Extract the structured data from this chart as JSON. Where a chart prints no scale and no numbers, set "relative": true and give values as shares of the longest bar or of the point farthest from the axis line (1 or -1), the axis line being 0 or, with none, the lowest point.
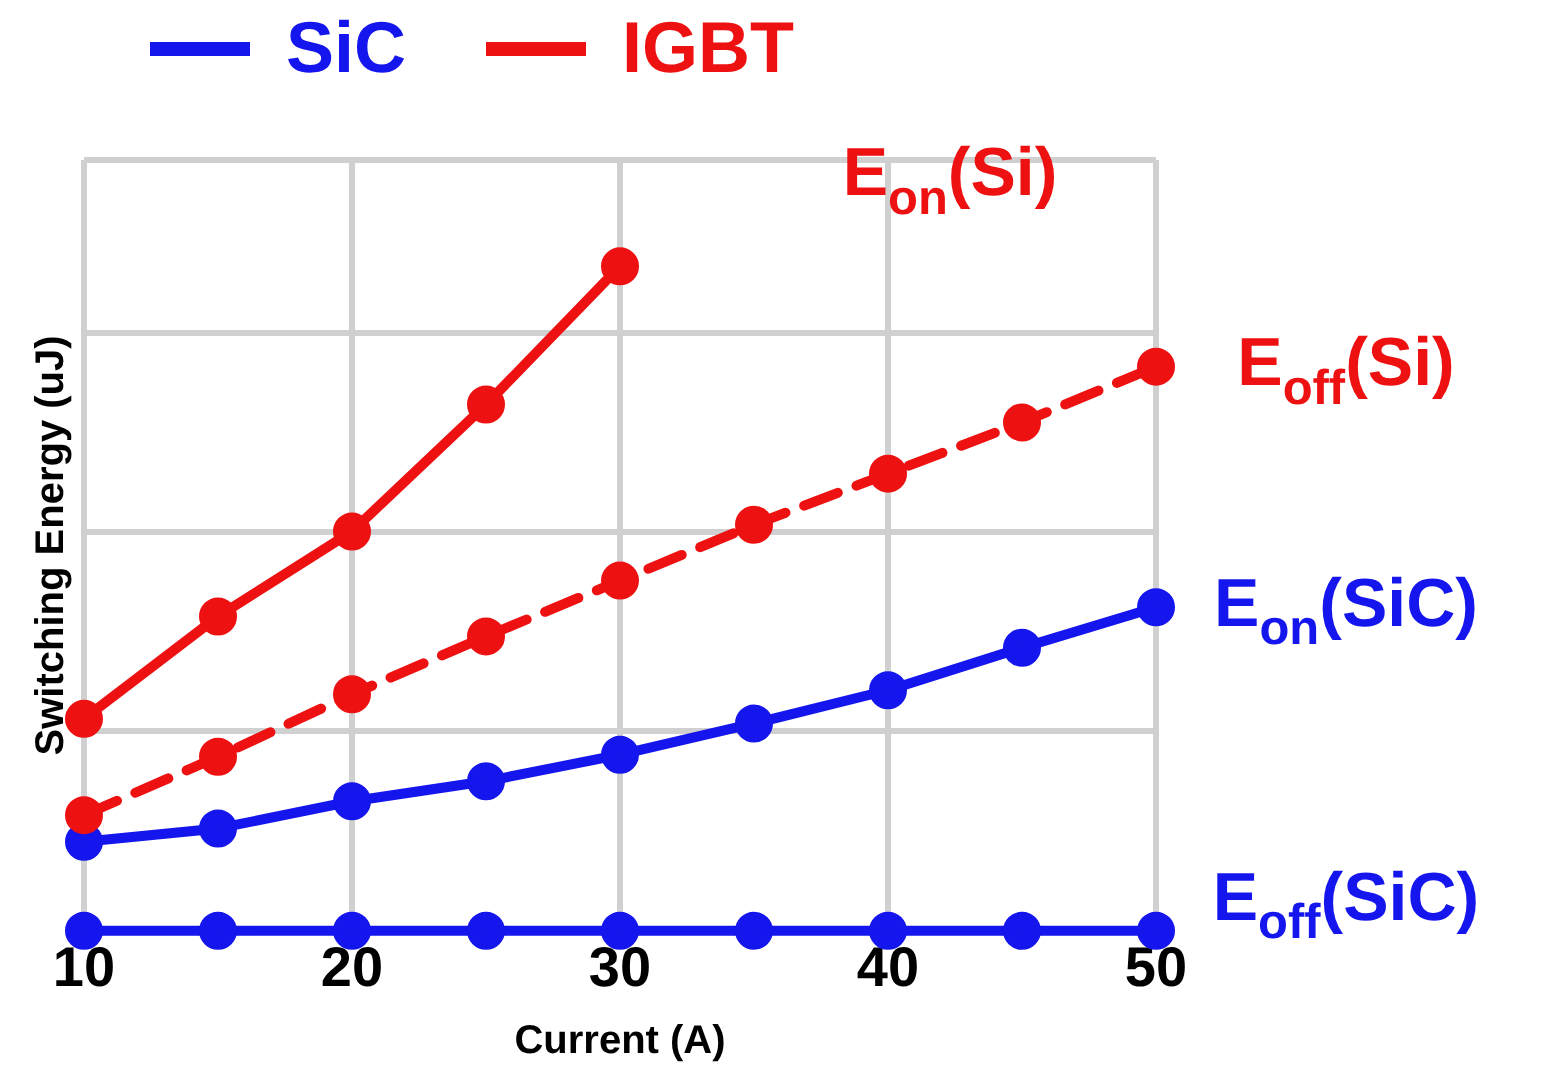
{
  "chart_data": {
    "type": "line",
    "relative": true,
    "xlabel": "Current (A)",
    "ylabel": "Switching Energy (uJ)",
    "x": [
      10,
      15,
      20,
      25,
      30,
      35,
      40,
      45,
      50
    ],
    "xlim": [
      10,
      50
    ],
    "xticks": [
      10,
      20,
      30,
      40,
      50
    ],
    "grid": true,
    "marker": "circle",
    "series": [
      {
        "name": "E$_{on}$(Si)",
        "color": "#ee1111",
        "values": [
          0.319,
          0.473,
          0.601,
          0.792,
          1.0,
          null,
          null,
          null,
          null
        ]
      },
      {
        "name": "E$_{off}$(Si)",
        "color": "#ee1111",
        "line_style": "dashed",
        "values": [
          0.174,
          0.262,
          0.356,
          0.443,
          0.527,
          0.611,
          0.688,
          0.765,
          0.849
        ]
      },
      {
        "name": "E$_{on}$(SiC)",
        "color": "#1515ee",
        "values": [
          0.134,
          0.154,
          0.195,
          0.225,
          0.265,
          0.312,
          0.362,
          0.426,
          0.487
        ]
      },
      {
        "name": "E$_{off}$(SiC)",
        "color": "#1515ee",
        "values": [
          0,
          0,
          0,
          0,
          0,
          0,
          0,
          0,
          0
        ]
      }
    ],
    "annotations": [
      "SiC",
      "IGBT"
    ]
  }
}
